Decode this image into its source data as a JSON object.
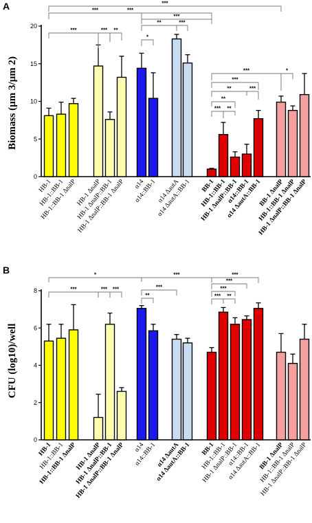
{
  "colors": {
    "yellow": "#ffff00",
    "light_yellow": "#ffffb0",
    "blue": "#1a1aee",
    "light_blue": "#c8ddf2",
    "red": "#e00000",
    "pink": "#f4a0a0"
  },
  "chart_data": [
    {
      "panel": "A",
      "type": "bar",
      "ylabel": "Biomass (µm 3/µm 2)",
      "ylim": [
        0,
        20
      ],
      "yticks": [
        "0",
        "5",
        "10",
        "15",
        "20"
      ],
      "categories": [
        "HB-1",
        "HB-1::BB-1",
        "HB-1::BB-1 ΔnalP",
        "HB-1 ΔnalP",
        "HB-1 ΔnalP::BB-1",
        "HB-1 ΔnalP::BB-1 ΔnalP",
        "α14",
        "α14::BB-1",
        "α14 ΔautA",
        "α14 ΔautA::BB-1",
        "BB-1",
        "HB-1::BB-1",
        "HB-1 ΔnalP::BB-1",
        "α14::BB-1",
        "α14 ΔautA::BB-1",
        "BB-1 ΔnalP",
        "HB-1::BB-1 ΔnalP",
        "HB-1 ΔnalP::BB-1 ΔnalP"
      ],
      "bold_categories": [
        false,
        false,
        false,
        false,
        false,
        false,
        false,
        false,
        false,
        false,
        true,
        true,
        true,
        true,
        true,
        true,
        true,
        true
      ],
      "values": [
        8.1,
        8.3,
        9.7,
        14.7,
        7.6,
        13.2,
        14.4,
        10.4,
        18.3,
        15.1,
        1.0,
        5.6,
        2.6,
        3.0,
        7.7,
        9.9,
        8.8,
        10.9
      ],
      "errors": [
        1.0,
        1.6,
        0.7,
        2.8,
        1.0,
        2.8,
        2.0,
        3.4,
        0.6,
        1.1,
        0.1,
        1.6,
        0.7,
        1.3,
        1.1,
        0.8,
        0.6,
        2.8
      ],
      "color_keys": [
        "yellow",
        "yellow",
        "yellow",
        "light_yellow",
        "light_yellow",
        "light_yellow",
        "blue",
        "blue",
        "light_blue",
        "light_blue",
        "red",
        "red",
        "red",
        "red",
        "red",
        "pink",
        "pink",
        "pink"
      ],
      "significance": [
        {
          "a": 0,
          "b": 15,
          "label": "***"
        },
        {
          "a": 0,
          "b": 10,
          "label": "***"
        },
        {
          "a": 0,
          "b": 6,
          "label": "***"
        },
        {
          "a": 6,
          "b": 10,
          "label": "***"
        },
        {
          "a": 0,
          "b": 3,
          "label": "***"
        },
        {
          "a": 3,
          "b": 4,
          "label": "***"
        },
        {
          "a": 4,
          "b": 5,
          "label": "**"
        },
        {
          "a": 6,
          "b": 7,
          "label": "*"
        },
        {
          "a": 6,
          "b": 8,
          "label": "**"
        },
        {
          "a": 8,
          "b": 9,
          "label": "***"
        },
        {
          "a": 10,
          "b": 15,
          "label": "***"
        },
        {
          "a": 15,
          "b": 16,
          "label": "*"
        },
        {
          "a": 10,
          "b": 14,
          "label": "***"
        },
        {
          "a": 10,
          "b": 13,
          "label": "**"
        },
        {
          "a": 13,
          "b": 14,
          "label": "***"
        },
        {
          "a": 10,
          "b": 12,
          "label": "**"
        },
        {
          "a": 10,
          "b": 11,
          "label": "***"
        },
        {
          "a": 11,
          "b": 12,
          "label": "**"
        }
      ]
    },
    {
      "panel": "B",
      "type": "bar",
      "ylabel": "CFU (log10)/well",
      "ylim": [
        0,
        8
      ],
      "yticks": [
        "0",
        "2",
        "4",
        "6",
        "8"
      ],
      "categories": [
        "HB-1",
        "HB-1::BB-1",
        "HB-1::BB-1 ΔnalP",
        "HB-1 ΔnalP",
        "HB-1 ΔnalP::BB-1",
        "HB-1 ΔnalP::BB-1 ΔnalP",
        "α14",
        "α14::BB-1",
        "α14 ΔautA",
        "α14 ΔautA::BB-1",
        "BB-1",
        "HB-1::BB-1",
        "HB-1 ΔnalP::BB-1",
        "α14::BB-1",
        "α14 ΔautA::BB-1",
        "BB-1 ΔnalP",
        "HB-1::BB-1 ΔnalP",
        "HB-1 ΔnalP::BB-1 ΔnalP"
      ],
      "bold_categories": [
        true,
        false,
        true,
        true,
        true,
        true,
        false,
        false,
        true,
        true,
        true,
        false,
        false,
        false,
        false,
        true,
        false,
        false
      ],
      "values": [
        5.3,
        5.45,
        5.9,
        1.2,
        6.2,
        2.6,
        7.05,
        5.85,
        5.4,
        5.2,
        4.7,
        6.85,
        6.2,
        6.45,
        7.05,
        4.7,
        4.1,
        5.4
      ],
      "errors": [
        0.9,
        0.75,
        1.35,
        1.25,
        0.6,
        0.2,
        0.15,
        0.35,
        0.25,
        0.25,
        0.25,
        0.25,
        0.35,
        0.2,
        0.3,
        1.0,
        0.5,
        0.8
      ],
      "color_keys": [
        "yellow",
        "yellow",
        "yellow",
        "light_yellow",
        "light_yellow",
        "light_yellow",
        "blue",
        "blue",
        "light_blue",
        "light_blue",
        "red",
        "red",
        "red",
        "red",
        "red",
        "pink",
        "pink",
        "pink"
      ],
      "significance": [
        {
          "a": 0,
          "b": 6,
          "label": "*"
        },
        {
          "a": 6,
          "b": 10,
          "label": "***"
        },
        {
          "a": 10,
          "b": 14,
          "label": "***"
        },
        {
          "a": 0,
          "b": 3,
          "label": "***"
        },
        {
          "a": 3,
          "b": 4,
          "label": "***"
        },
        {
          "a": 4,
          "b": 5,
          "label": "***"
        },
        {
          "a": 6,
          "b": 8,
          "label": "***"
        },
        {
          "a": 6,
          "b": 7,
          "label": "**"
        },
        {
          "a": 10,
          "b": 13,
          "label": "***"
        },
        {
          "a": 10,
          "b": 12,
          "label": "***"
        },
        {
          "a": 10,
          "b": 11,
          "label": "***"
        },
        {
          "a": 11,
          "b": 12,
          "label": "**"
        }
      ]
    }
  ]
}
